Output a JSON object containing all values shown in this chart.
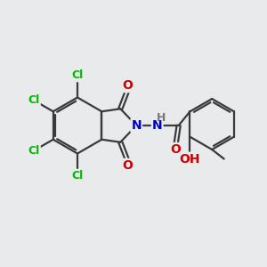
{
  "background_color": "#e8eaec",
  "bond_color": "#3a3a3a",
  "bond_width": 1.6,
  "atom_colors": {
    "Cl": "#00bb00",
    "N": "#0000cc",
    "O": "#cc0000",
    "H": "#777777",
    "C": "#3a3a3a"
  }
}
